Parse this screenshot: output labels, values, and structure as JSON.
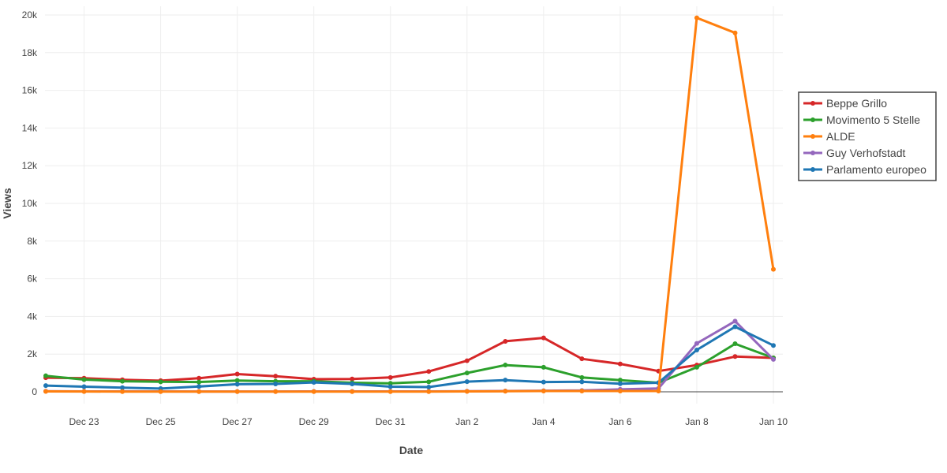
{
  "chart_data": {
    "type": "line",
    "title": "",
    "xlabel": "Date",
    "ylabel": "Views",
    "x": [
      "2014-12-22",
      "2014-12-23",
      "2014-12-24",
      "2014-12-25",
      "2014-12-26",
      "2014-12-27",
      "2014-12-28",
      "2014-12-29",
      "2014-12-30",
      "2014-12-31",
      "2015-01-01",
      "2015-01-02",
      "2015-01-03",
      "2015-01-04",
      "2015-01-05",
      "2015-01-06",
      "2015-01-07",
      "2015-01-08",
      "2015-01-09",
      "2015-01-10"
    ],
    "x_tick_labels": [
      "Dec 23",
      "Dec 25",
      "Dec 27",
      "Dec 29",
      "Dec 31",
      "Jan 2",
      "Jan 4",
      "Jan 6",
      "Jan 8",
      "Jan 10"
    ],
    "y_tick_labels": [
      "0",
      "2k",
      "4k",
      "6k",
      "8k",
      "10k",
      "12k",
      "14k",
      "16k",
      "18k",
      "20k"
    ],
    "ylim": [
      -500,
      20200
    ],
    "grid": true,
    "legend_position": "right",
    "series": [
      {
        "name": "Beppe Grillo",
        "color": "#d62728",
        "values": [
          750,
          720,
          640,
          590,
          720,
          940,
          830,
          670,
          680,
          760,
          1080,
          1650,
          2680,
          2860,
          1750,
          1480,
          1100,
          1420,
          1870,
          1800
        ]
      },
      {
        "name": "Movimento 5 Stelle",
        "color": "#2ca02c",
        "values": [
          850,
          650,
          560,
          530,
          520,
          600,
          560,
          560,
          480,
          450,
          530,
          1000,
          1420,
          1300,
          760,
          620,
          480,
          1300,
          2550,
          1800
        ]
      },
      {
        "name": "ALDE",
        "color": "#ff7f0e",
        "values": [
          20,
          15,
          10,
          10,
          10,
          10,
          10,
          10,
          10,
          10,
          10,
          20,
          30,
          40,
          40,
          40,
          40,
          19850,
          19050,
          6500
        ]
      },
      {
        "name": "Guy Verhofstadt",
        "color": "#9467bd",
        "values": [
          30,
          20,
          20,
          20,
          15,
          15,
          15,
          20,
          20,
          20,
          20,
          30,
          40,
          60,
          70,
          130,
          180,
          2570,
          3750,
          1720
        ]
      },
      {
        "name": "Parlamento europeo",
        "color": "#1f77b4",
        "values": [
          330,
          270,
          220,
          170,
          280,
          400,
          420,
          500,
          420,
          270,
          250,
          540,
          620,
          520,
          530,
          430,
          480,
          2220,
          3450,
          2460
        ]
      }
    ]
  }
}
